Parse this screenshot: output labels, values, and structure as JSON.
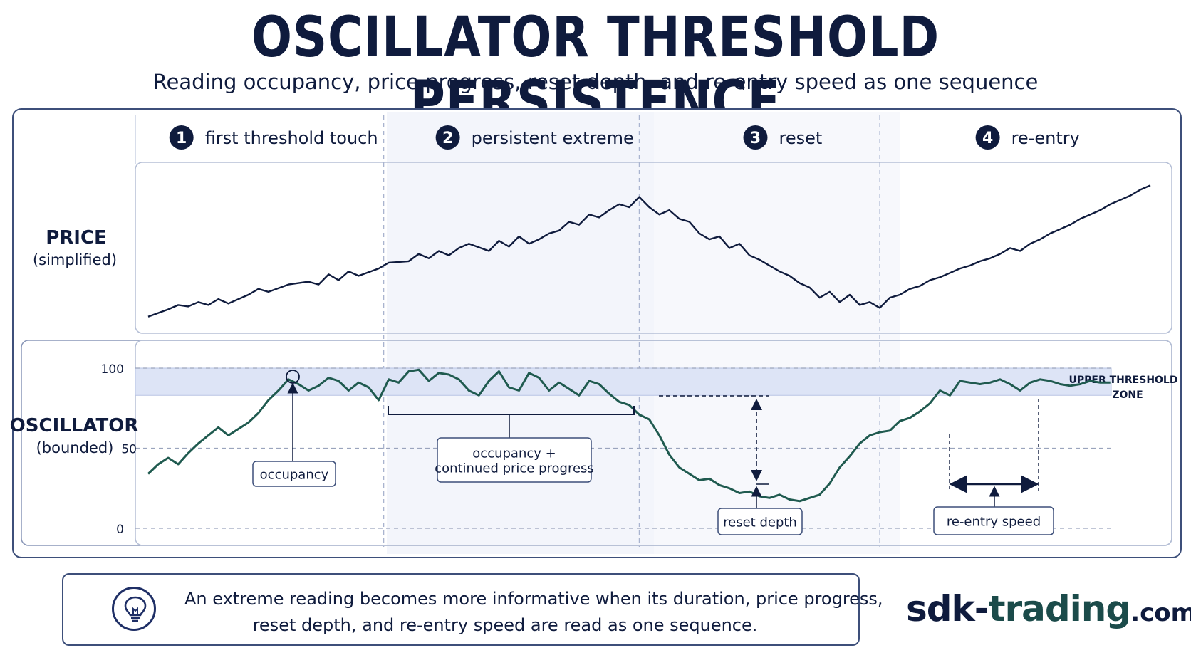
{
  "page": {
    "title": "OSCILLATOR THRESHOLD PERSISTENCE",
    "subtitle": "Reading occupancy, price progress, reset depth, and re-entry speed as one sequence"
  },
  "stages": [
    {
      "number": "1",
      "label": "first threshold touch"
    },
    {
      "number": "2",
      "label": "persistent extreme"
    },
    {
      "number": "3",
      "label": "reset"
    },
    {
      "number": "4",
      "label": "re-entry"
    }
  ],
  "panels": {
    "price": {
      "label": "PRICE",
      "sublabel": "(simplified)"
    },
    "oscillator": {
      "label": "OSCILLATOR",
      "sublabel": "(bounded)"
    }
  },
  "chart_data": {
    "type": "line",
    "x_range": [
      0,
      100
    ],
    "stage_boundaries": [
      23.5,
      49,
      73
    ],
    "price": {
      "x": [
        0,
        2,
        3,
        4,
        5,
        6,
        7,
        8,
        10,
        11,
        12,
        14,
        16,
        17,
        18,
        19,
        20,
        21,
        23,
        24,
        26,
        27,
        28,
        29,
        30,
        31,
        32,
        34,
        35,
        36,
        37,
        38,
        39,
        40,
        41,
        42,
        43,
        44,
        45,
        46,
        47,
        48,
        49,
        50,
        51,
        52,
        53,
        54,
        55,
        56,
        57,
        58,
        59,
        60,
        61,
        62,
        63,
        64,
        65,
        66,
        67,
        68,
        69,
        70,
        71,
        72,
        73,
        74,
        75,
        76,
        77,
        78,
        79,
        80,
        81,
        82,
        83,
        84,
        85,
        86,
        87,
        88,
        89,
        90,
        91,
        92,
        93,
        94,
        95,
        96,
        97,
        98,
        99,
        100
      ],
      "values": [
        5,
        10,
        13,
        12,
        15,
        13,
        17,
        14,
        20,
        24,
        22,
        27,
        29,
        27,
        34,
        30,
        36,
        33,
        38,
        42,
        43,
        48,
        45,
        50,
        47,
        52,
        55,
        50,
        57,
        53,
        60,
        55,
        58,
        62,
        64,
        70,
        68,
        75,
        73,
        78,
        82,
        80,
        87,
        80,
        75,
        78,
        72,
        70,
        62,
        58,
        60,
        52,
        55,
        47,
        44,
        40,
        36,
        33,
        28,
        25,
        18,
        22,
        15,
        20,
        13,
        15,
        11,
        18,
        20,
        24,
        26,
        30,
        32,
        35,
        38,
        40,
        43,
        45,
        48,
        52,
        50,
        55,
        58,
        62,
        65,
        68,
        72,
        75,
        78,
        82,
        85,
        88,
        92,
        95
      ]
    },
    "oscillator": {
      "y_ticks": [
        0,
        50,
        100
      ],
      "threshold_zone": [
        83,
        100
      ],
      "threshold_label": "UPPER THRESHOLD ZONE",
      "x": [
        0,
        1,
        2,
        3,
        4,
        5,
        6,
        7,
        8,
        9,
        10,
        11,
        12,
        13,
        14,
        15,
        16,
        17,
        18,
        19,
        20,
        21,
        22,
        23,
        24,
        25,
        26,
        27,
        28,
        29,
        30,
        31,
        32,
        33,
        34,
        35,
        36,
        37,
        38,
        39,
        40,
        41,
        42,
        43,
        44,
        45,
        46,
        47,
        48,
        49,
        50,
        51,
        52,
        53,
        54,
        55,
        56,
        57,
        58,
        59,
        60,
        61,
        62,
        63,
        64,
        65,
        66,
        67,
        68,
        69,
        70,
        71,
        72,
        73,
        74,
        75,
        76,
        77,
        78,
        79,
        80,
        81,
        82,
        83,
        84,
        85,
        86,
        87,
        88,
        89,
        90,
        91,
        92,
        93,
        94,
        95,
        96
      ],
      "values": [
        34,
        40,
        44,
        40,
        47,
        53,
        58,
        63,
        58,
        62,
        66,
        72,
        80,
        86,
        93,
        90,
        86,
        89,
        94,
        92,
        86,
        91,
        88,
        80,
        93,
        91,
        98,
        99,
        92,
        97,
        96,
        93,
        86,
        83,
        92,
        98,
        88,
        86,
        97,
        94,
        86,
        91,
        87,
        83,
        92,
        90,
        84,
        79,
        77,
        71,
        68,
        58,
        46,
        38,
        34,
        30,
        31,
        27,
        25,
        22,
        23,
        20,
        19,
        21,
        18,
        17,
        19,
        21,
        28,
        38,
        45,
        53,
        58,
        60,
        61,
        67,
        69,
        73,
        78,
        86,
        83,
        92,
        91,
        90,
        91,
        93,
        90,
        86,
        91,
        93,
        92,
        90,
        89,
        90,
        92,
        91,
        91
      ]
    },
    "annotations": {
      "occupancy": "occupancy",
      "occupancy_progress": "occupancy + continued price progress",
      "reset_depth": "reset depth",
      "reentry_speed": "re-entry speed"
    }
  },
  "footer": {
    "icon": "lightbulb-icon",
    "line1": "An extreme reading becomes more informative when its duration, price progress,",
    "line2": "reset depth, and re-entry speed are read as one sequence."
  },
  "brand": {
    "part1": "sdk-",
    "part2": "trading",
    "part3": ".com"
  },
  "colors": {
    "navy": "#0f1b3d",
    "teal": "#1f5a4f",
    "zone": "#dfe5f7",
    "shade": "#f1f4fb"
  }
}
